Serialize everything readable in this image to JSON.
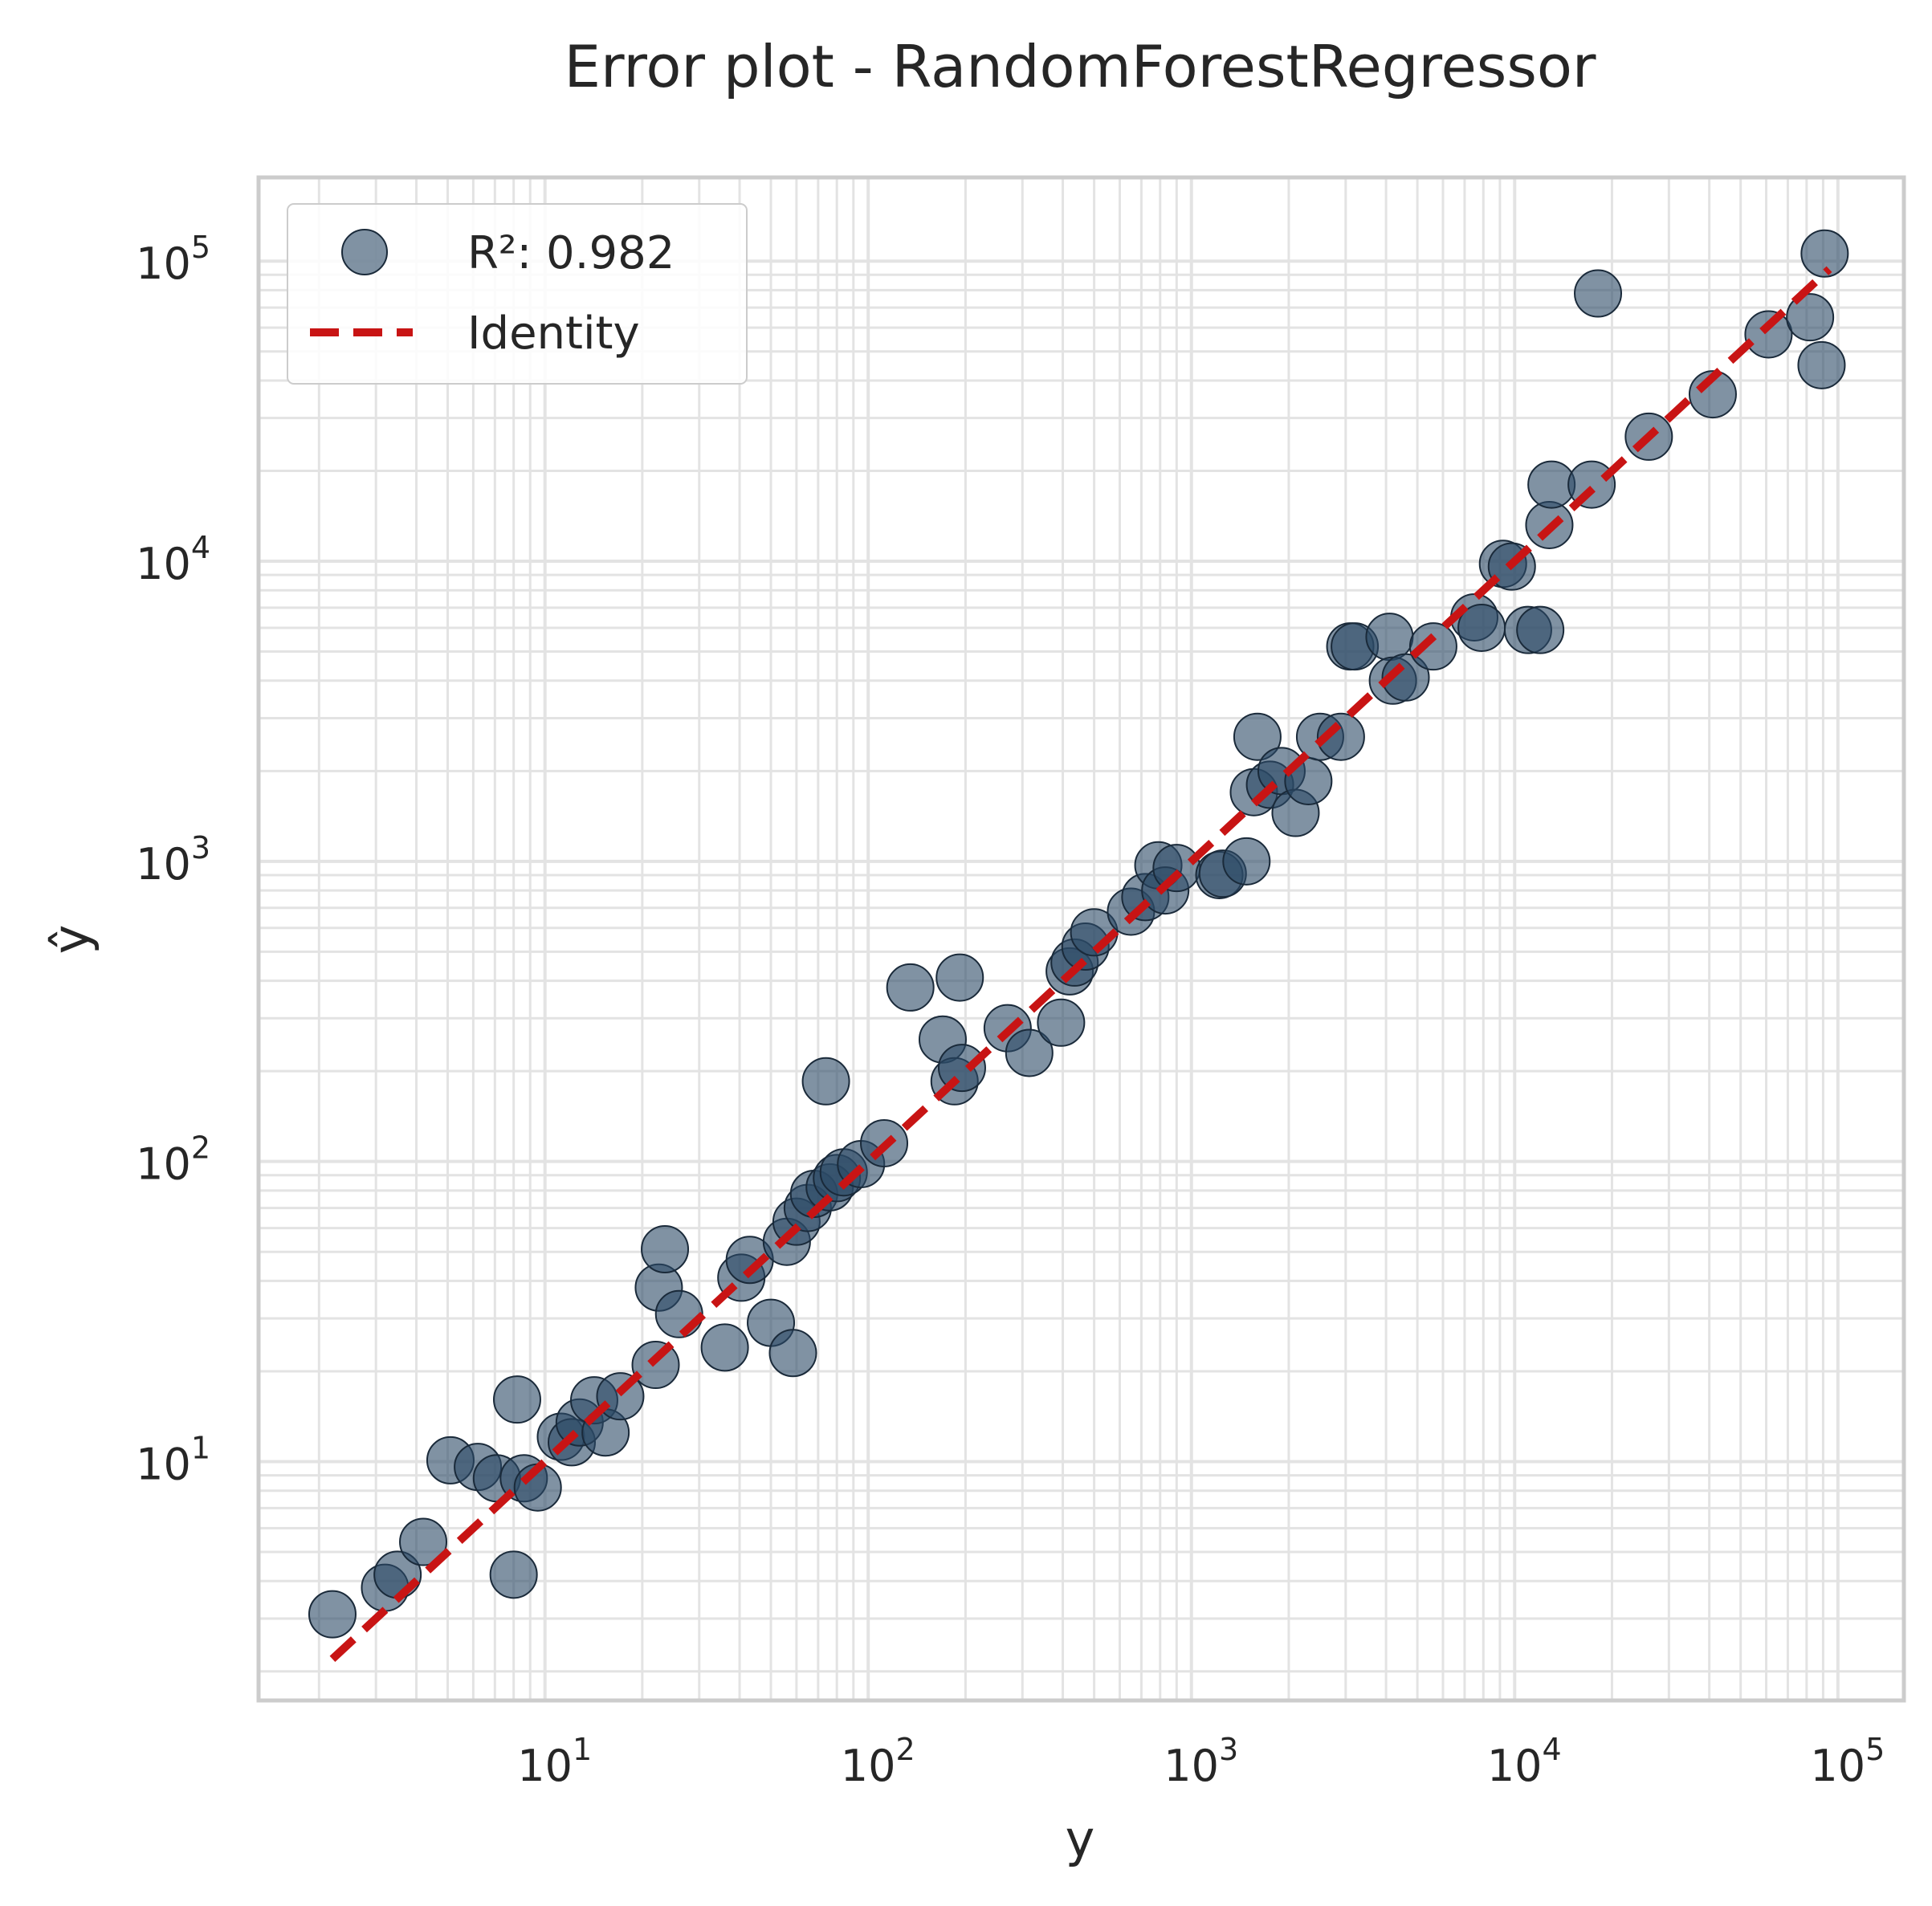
{
  "chart_data": {
    "type": "scatter",
    "title": "Error plot - RandomForestRegressor",
    "xlabel": "y",
    "ylabel": "ŷ",
    "xscale": "log",
    "yscale": "log",
    "xlim": [
      1.3,
      160000
    ],
    "ylim": [
      1.6,
      190000
    ],
    "grid": true,
    "grid_minor": true,
    "legend_position": "top-left",
    "x_ticks": [
      {
        "base": "10",
        "exp": "1",
        "value": 10
      },
      {
        "base": "10",
        "exp": "2",
        "value": 100
      },
      {
        "base": "10",
        "exp": "3",
        "value": 1000
      },
      {
        "base": "10",
        "exp": "4",
        "value": 10000
      },
      {
        "base": "10",
        "exp": "5",
        "value": 100000
      }
    ],
    "y_ticks": [
      {
        "base": "10",
        "exp": "1",
        "value": 10
      },
      {
        "base": "10",
        "exp": "2",
        "value": 100
      },
      {
        "base": "10",
        "exp": "3",
        "value": 1000
      },
      {
        "base": "10",
        "exp": "4",
        "value": 10000
      },
      {
        "base": "10",
        "exp": "5",
        "value": 100000
      }
    ],
    "colors": {
      "points": "#2c4a66",
      "points_edge": "#1a2a3a",
      "identity": "#c81414",
      "grid": "#e3e3e3",
      "frame": "#cccccc"
    },
    "series": [
      {
        "name": "R²: 0.982",
        "kind": "scatter",
        "points": [
          {
            "x": 2.2,
            "y": 3.1
          },
          {
            "x": 3.2,
            "y": 3.8
          },
          {
            "x": 3.5,
            "y": 4.2
          },
          {
            "x": 4.2,
            "y": 5.4
          },
          {
            "x": 5.1,
            "y": 10.1
          },
          {
            "x": 6.2,
            "y": 9.6
          },
          {
            "x": 7.1,
            "y": 8.8
          },
          {
            "x": 8.0,
            "y": 4.2
          },
          {
            "x": 8.2,
            "y": 16.1
          },
          {
            "x": 8.6,
            "y": 8.8
          },
          {
            "x": 9.5,
            "y": 8.2
          },
          {
            "x": 11.2,
            "y": 12.1
          },
          {
            "x": 12.1,
            "y": 11.6
          },
          {
            "x": 12.8,
            "y": 13.5
          },
          {
            "x": 14.2,
            "y": 16.0
          },
          {
            "x": 15.4,
            "y": 12.5
          },
          {
            "x": 17.1,
            "y": 16.5
          },
          {
            "x": 22.0,
            "y": 21.0
          },
          {
            "x": 22.5,
            "y": 38.0
          },
          {
            "x": 23.5,
            "y": 51.0
          },
          {
            "x": 26.0,
            "y": 31.0
          },
          {
            "x": 36.0,
            "y": 24.0
          },
          {
            "x": 40.5,
            "y": 41.0
          },
          {
            "x": 43.0,
            "y": 47.0
          },
          {
            "x": 50.0,
            "y": 29.0
          },
          {
            "x": 56.0,
            "y": 54.0
          },
          {
            "x": 58.5,
            "y": 23.0
          },
          {
            "x": 60.0,
            "y": 63.0
          },
          {
            "x": 65.0,
            "y": 70.0
          },
          {
            "x": 68.0,
            "y": 78.0
          },
          {
            "x": 74.0,
            "y": 185.0
          },
          {
            "x": 76.0,
            "y": 82.0
          },
          {
            "x": 80.0,
            "y": 88.0
          },
          {
            "x": 84.0,
            "y": 92.0
          },
          {
            "x": 95.0,
            "y": 98.0
          },
          {
            "x": 112.0,
            "y": 115.0
          },
          {
            "x": 135.0,
            "y": 380.0
          },
          {
            "x": 170.0,
            "y": 255.0
          },
          {
            "x": 185.0,
            "y": 185.0
          },
          {
            "x": 192.0,
            "y": 410.0
          },
          {
            "x": 195.0,
            "y": 205.0
          },
          {
            "x": 270.0,
            "y": 278.0
          },
          {
            "x": 315.0,
            "y": 230.0
          },
          {
            "x": 395.0,
            "y": 290.0
          },
          {
            "x": 420.0,
            "y": 430.0
          },
          {
            "x": 435.0,
            "y": 460.0
          },
          {
            "x": 470.0,
            "y": 520.0
          },
          {
            "x": 500.0,
            "y": 580.0
          },
          {
            "x": 650.0,
            "y": 680.0
          },
          {
            "x": 720.0,
            "y": 760.0
          },
          {
            "x": 790.0,
            "y": 970.0
          },
          {
            "x": 830.0,
            "y": 800.0
          },
          {
            "x": 900.0,
            "y": 950.0
          },
          {
            "x": 1220.0,
            "y": 900.0
          },
          {
            "x": 1250.0,
            "y": 910.0
          },
          {
            "x": 1480.0,
            "y": 1000.0
          },
          {
            "x": 1560.0,
            "y": 1700.0
          },
          {
            "x": 1600.0,
            "y": 2600.0
          },
          {
            "x": 1750.0,
            "y": 1800.0
          },
          {
            "x": 1900.0,
            "y": 2000.0
          },
          {
            "x": 2100.0,
            "y": 1450.0
          },
          {
            "x": 2300.0,
            "y": 1850.0
          },
          {
            "x": 2500.0,
            "y": 2600.0
          },
          {
            "x": 2900.0,
            "y": 2600.0
          },
          {
            "x": 3100.0,
            "y": 5200.0
          },
          {
            "x": 3200.0,
            "y": 5200.0
          },
          {
            "x": 4100.0,
            "y": 5600.0
          },
          {
            "x": 4200.0,
            "y": 4000.0
          },
          {
            "x": 4600.0,
            "y": 4100.0
          },
          {
            "x": 5600.0,
            "y": 5200.0
          },
          {
            "x": 7500.0,
            "y": 6500.0
          },
          {
            "x": 7900.0,
            "y": 6000.0
          },
          {
            "x": 9200.0,
            "y": 9800.0
          },
          {
            "x": 9800.0,
            "y": 9600.0
          },
          {
            "x": 11000.0,
            "y": 5900.0
          },
          {
            "x": 12000.0,
            "y": 5900.0
          },
          {
            "x": 12800.0,
            "y": 13200.0
          },
          {
            "x": 13000.0,
            "y": 18000.0
          },
          {
            "x": 17300.0,
            "y": 18000.0
          },
          {
            "x": 18100.0,
            "y": 78000.0
          },
          {
            "x": 26000.0,
            "y": 26000.0
          },
          {
            "x": 41000.0,
            "y": 36000.0
          },
          {
            "x": 61000.0,
            "y": 57000.0
          },
          {
            "x": 82000.0,
            "y": 65000.0
          },
          {
            "x": 89000.0,
            "y": 45000.0
          },
          {
            "x": 91000.0,
            "y": 106000.0
          }
        ]
      },
      {
        "name": "Identity",
        "kind": "line",
        "style": "dashed",
        "points": [
          {
            "x": 2.2,
            "y": 2.2
          },
          {
            "x": 94000,
            "y": 94000
          }
        ]
      }
    ]
  }
}
